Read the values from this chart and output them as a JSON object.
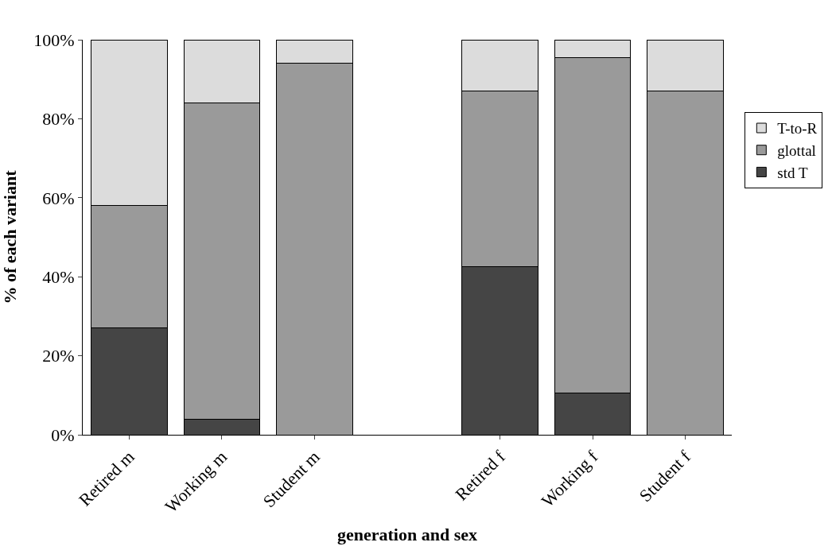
{
  "chart_data": {
    "type": "bar",
    "stacked": true,
    "xlabel": "generation and sex",
    "ylabel": "% of each variant",
    "categories": [
      "Retired m",
      "Working m",
      "Student m",
      null,
      "Retired f",
      "Working f",
      "Student f"
    ],
    "series": [
      {
        "name": "std T",
        "color": "#454545",
        "values": [
          27,
          4,
          0,
          null,
          42.5,
          10.5,
          0
        ]
      },
      {
        "name": "glottal",
        "color": "#9a9a9a",
        "values": [
          31,
          80,
          94,
          null,
          44.5,
          85,
          87
        ]
      },
      {
        "name": "T-to-R",
        "color": "#dcdcdc",
        "values": [
          42,
          16,
          6,
          null,
          13,
          4.5,
          13
        ]
      }
    ],
    "ylim": [
      0,
      100
    ],
    "yticks": [
      {
        "value": 0,
        "label": "0%"
      },
      {
        "value": 20,
        "label": "20%"
      },
      {
        "value": 40,
        "label": "40%"
      },
      {
        "value": 60,
        "label": "60%"
      },
      {
        "value": 80,
        "label": "80%"
      },
      {
        "value": 100,
        "label": "100%"
      }
    ],
    "legend": "right",
    "grid": false
  }
}
